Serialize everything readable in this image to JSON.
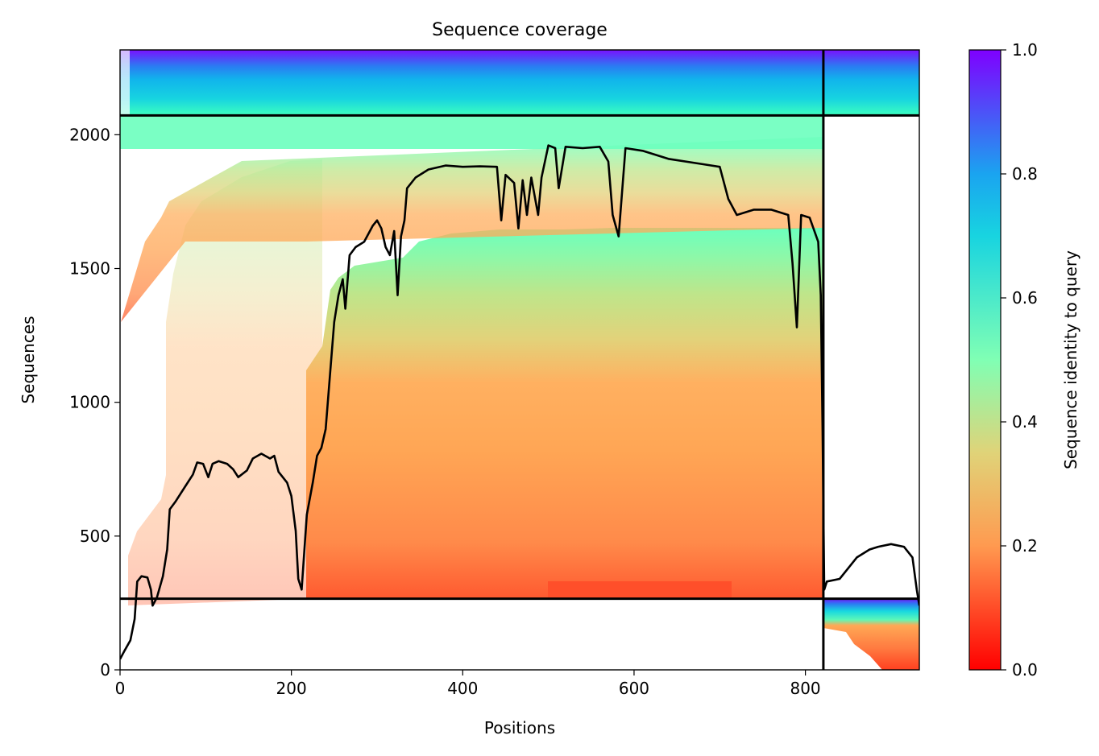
{
  "chart_data": {
    "type": "heatmap",
    "title": "Sequence coverage",
    "xlabel": "Positions",
    "ylabel": "Sequences",
    "xlim": [
      0,
      933
    ],
    "ylim": [
      0,
      2317
    ],
    "xticks": [
      "0",
      "200",
      "400",
      "600",
      "800"
    ],
    "yticks": [
      "0",
      "500",
      "1000",
      "1500",
      "2000"
    ],
    "colorbar": {
      "label": "Sequence identity to query",
      "range": [
        0,
        1
      ],
      "ticks": [
        "0.0",
        "0.2",
        "0.4",
        "0.6",
        "0.8",
        "1.0"
      ],
      "colormap": "rainbow"
    },
    "chain_boundaries": {
      "x": 821,
      "y": [
        266,
        2072
      ]
    },
    "coverage_line": [
      [
        0,
        40
      ],
      [
        5,
        70
      ],
      [
        12,
        110
      ],
      [
        17,
        190
      ],
      [
        20,
        330
      ],
      [
        25,
        350
      ],
      [
        32,
        345
      ],
      [
        36,
        300
      ],
      [
        38,
        240
      ],
      [
        43,
        270
      ],
      [
        50,
        350
      ],
      [
        55,
        450
      ],
      [
        58,
        600
      ],
      [
        65,
        630
      ],
      [
        75,
        680
      ],
      [
        85,
        730
      ],
      [
        90,
        775
      ],
      [
        97,
        770
      ],
      [
        103,
        720
      ],
      [
        108,
        770
      ],
      [
        115,
        780
      ],
      [
        125,
        770
      ],
      [
        132,
        750
      ],
      [
        138,
        720
      ],
      [
        148,
        745
      ],
      [
        155,
        790
      ],
      [
        165,
        808
      ],
      [
        175,
        790
      ],
      [
        180,
        800
      ],
      [
        185,
        740
      ],
      [
        195,
        700
      ],
      [
        200,
        650
      ],
      [
        205,
        520
      ],
      [
        208,
        340
      ],
      [
        212,
        300
      ],
      [
        218,
        580
      ],
      [
        225,
        700
      ],
      [
        230,
        800
      ],
      [
        235,
        830
      ],
      [
        240,
        900
      ],
      [
        245,
        1100
      ],
      [
        250,
        1300
      ],
      [
        255,
        1400
      ],
      [
        260,
        1460
      ],
      [
        263,
        1350
      ],
      [
        268,
        1550
      ],
      [
        275,
        1580
      ],
      [
        285,
        1600
      ],
      [
        295,
        1660
      ],
      [
        300,
        1680
      ],
      [
        305,
        1650
      ],
      [
        310,
        1580
      ],
      [
        315,
        1550
      ],
      [
        320,
        1640
      ],
      [
        324,
        1400
      ],
      [
        328,
        1620
      ],
      [
        332,
        1680
      ],
      [
        335,
        1800
      ],
      [
        345,
        1840
      ],
      [
        360,
        1870
      ],
      [
        380,
        1885
      ],
      [
        400,
        1880
      ],
      [
        420,
        1882
      ],
      [
        440,
        1880
      ],
      [
        445,
        1680
      ],
      [
        450,
        1850
      ],
      [
        460,
        1820
      ],
      [
        465,
        1650
      ],
      [
        470,
        1830
      ],
      [
        475,
        1700
      ],
      [
        480,
        1840
      ],
      [
        488,
        1700
      ],
      [
        492,
        1840
      ],
      [
        500,
        1960
      ],
      [
        508,
        1950
      ],
      [
        512,
        1800
      ],
      [
        520,
        1955
      ],
      [
        540,
        1950
      ],
      [
        560,
        1955
      ],
      [
        570,
        1900
      ],
      [
        575,
        1700
      ],
      [
        582,
        1620
      ],
      [
        590,
        1950
      ],
      [
        610,
        1940
      ],
      [
        640,
        1910
      ],
      [
        680,
        1890
      ],
      [
        700,
        1880
      ],
      [
        710,
        1760
      ],
      [
        720,
        1700
      ],
      [
        740,
        1720
      ],
      [
        760,
        1720
      ],
      [
        780,
        1700
      ],
      [
        785,
        1520
      ],
      [
        790,
        1280
      ],
      [
        795,
        1700
      ],
      [
        805,
        1690
      ],
      [
        815,
        1600
      ],
      [
        818,
        1400
      ],
      [
        820,
        900
      ],
      [
        822,
        300
      ],
      [
        825,
        330
      ],
      [
        840,
        340
      ],
      [
        850,
        380
      ],
      [
        860,
        420
      ],
      [
        875,
        450
      ],
      [
        885,
        460
      ],
      [
        900,
        470
      ],
      [
        915,
        460
      ],
      [
        925,
        420
      ],
      [
        930,
        300
      ],
      [
        933,
        240
      ]
    ]
  }
}
